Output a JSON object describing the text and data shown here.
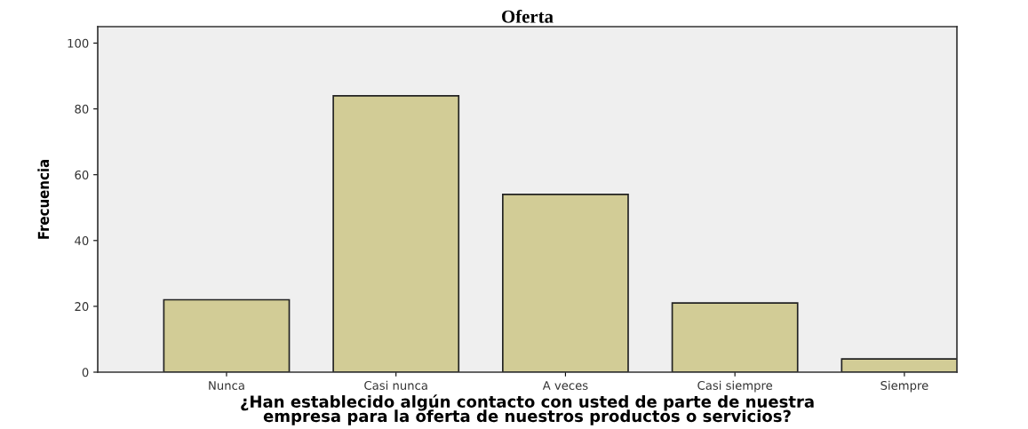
{
  "chart_data": {
    "type": "bar",
    "title": "Oferta",
    "categories": [
      "Nunca",
      "Casi nunca",
      "A veces",
      "Casi siempre",
      "Siempre"
    ],
    "values": [
      22,
      84,
      54,
      21,
      4
    ],
    "color": "#d2cc96",
    "xlabel": "¿Han establecido algún contacto con usted de parte de nuestra\nempresa para la oferta de nuestros productos o servicios?",
    "ylabel": "Frecuencia",
    "ylim": [
      0,
      105
    ],
    "yticks": [
      0,
      20,
      40,
      60,
      80,
      100
    ],
    "grid": false,
    "legend": false
  }
}
